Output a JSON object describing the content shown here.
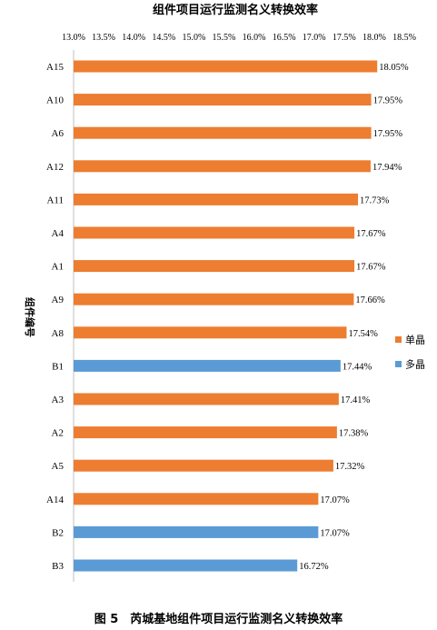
{
  "caption": "图 5　芮城基地组件项目运行监测名义转换效率",
  "chart_data": {
    "type": "bar",
    "orientation": "horizontal",
    "title": "组件项目运行监测名义转换效率",
    "ylabel": "组件编号",
    "xlabel": "",
    "xlim": [
      13.0,
      18.5
    ],
    "x_ticks": [
      "13.0%",
      "13.5%",
      "14.0%",
      "14.5%",
      "15.0%",
      "15.5%",
      "16.0%",
      "16.5%",
      "17.0%",
      "17.5%",
      "18.0%",
      "18.5%"
    ],
    "x_tick_values": [
      13.0,
      13.5,
      14.0,
      14.5,
      15.0,
      15.5,
      16.0,
      16.5,
      17.0,
      17.5,
      18.0,
      18.5
    ],
    "axis_position": "top",
    "grid": false,
    "legend_position": "right",
    "legend": [
      {
        "name": "单晶",
        "color": "#ED7D31"
      },
      {
        "name": "多晶",
        "color": "#5B9BD5"
      }
    ],
    "categories": [
      "A15",
      "A10",
      "A6",
      "A12",
      "A11",
      "A4",
      "A1",
      "A9",
      "A8",
      "B1",
      "A3",
      "A2",
      "A5",
      "A14",
      "B2",
      "B3"
    ],
    "values": [
      18.05,
      17.95,
      17.95,
      17.94,
      17.73,
      17.67,
      17.67,
      17.66,
      17.54,
      17.44,
      17.41,
      17.38,
      17.32,
      17.07,
      17.07,
      16.72
    ],
    "value_labels": [
      "18.05%",
      "17.95%",
      "17.95%",
      "17.94%",
      "17.73%",
      "17.67%",
      "17.67%",
      "17.66%",
      "17.54%",
      "17.44%",
      "17.41%",
      "17.38%",
      "17.32%",
      "17.07%",
      "17.07%",
      "16.72%"
    ],
    "series_of_category": [
      "单晶",
      "单晶",
      "单晶",
      "单晶",
      "单晶",
      "单晶",
      "单晶",
      "单晶",
      "单晶",
      "多晶",
      "单晶",
      "单晶",
      "单晶",
      "单晶",
      "多晶",
      "多晶"
    ]
  }
}
